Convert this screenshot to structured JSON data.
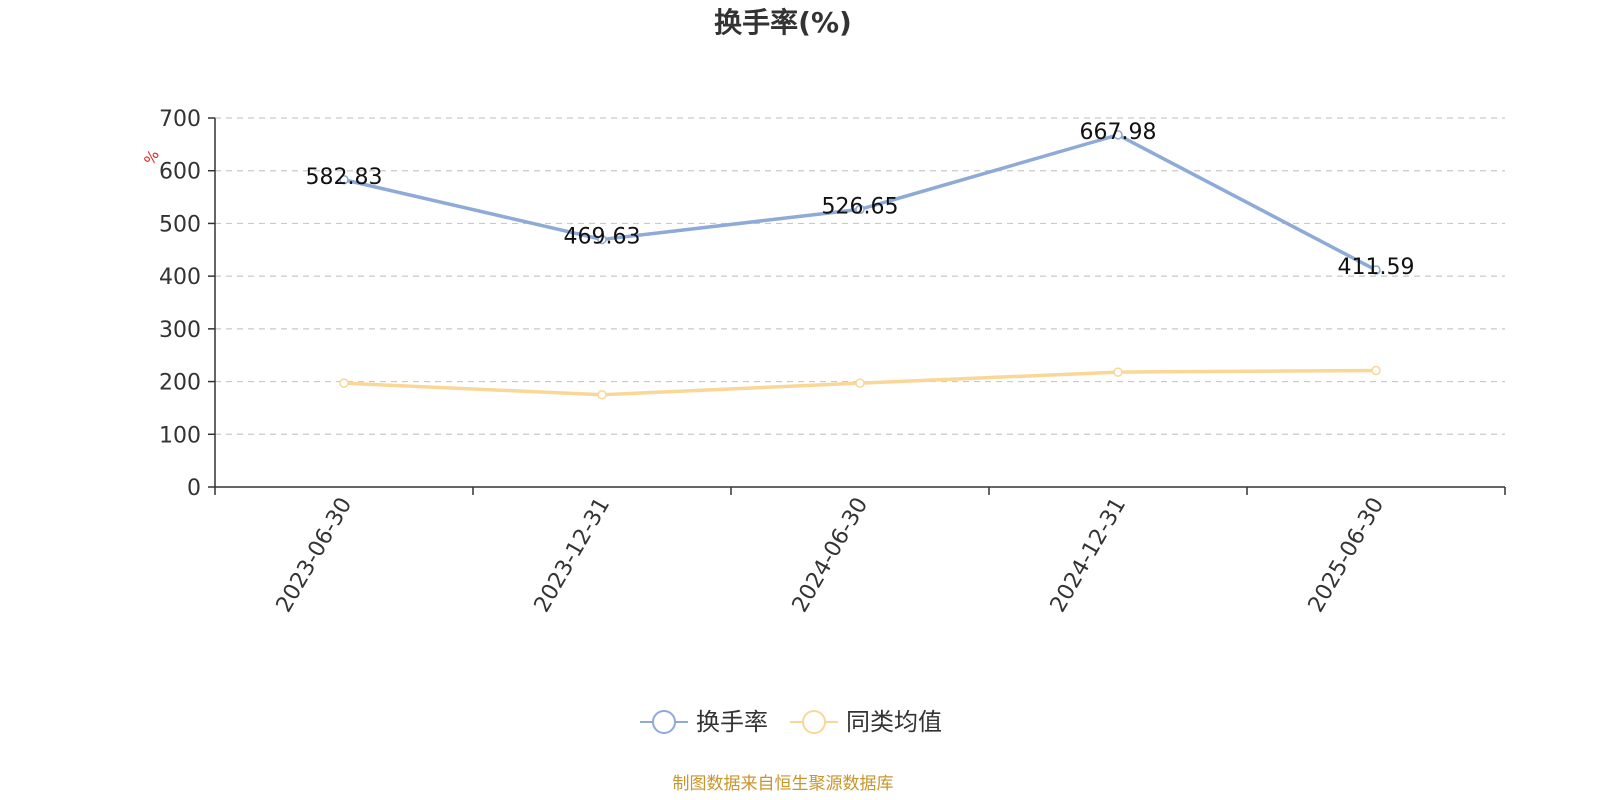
{
  "chart_data": {
    "type": "line",
    "title": "换手率(%)",
    "y_unit": "%",
    "categories": [
      "2023-06-30",
      "2023-12-31",
      "2024-06-30",
      "2024-12-31",
      "2025-06-30"
    ],
    "series": [
      {
        "name": "换手率",
        "values": [
          582.83,
          469.63,
          526.65,
          667.98,
          411.59
        ],
        "color": "#8eaad6",
        "show_labels": true
      },
      {
        "name": "同类均值",
        "values": [
          197,
          175,
          197,
          218,
          221
        ],
        "color": "#fad797",
        "show_labels": false
      }
    ],
    "ylim": [
      0,
      700
    ],
    "yticks": [
      0,
      100,
      200,
      300,
      400,
      500,
      600,
      700
    ],
    "grid": true,
    "legend_position": "bottom"
  },
  "footer": {
    "source": "制图数据来自恒生聚源数据库"
  }
}
